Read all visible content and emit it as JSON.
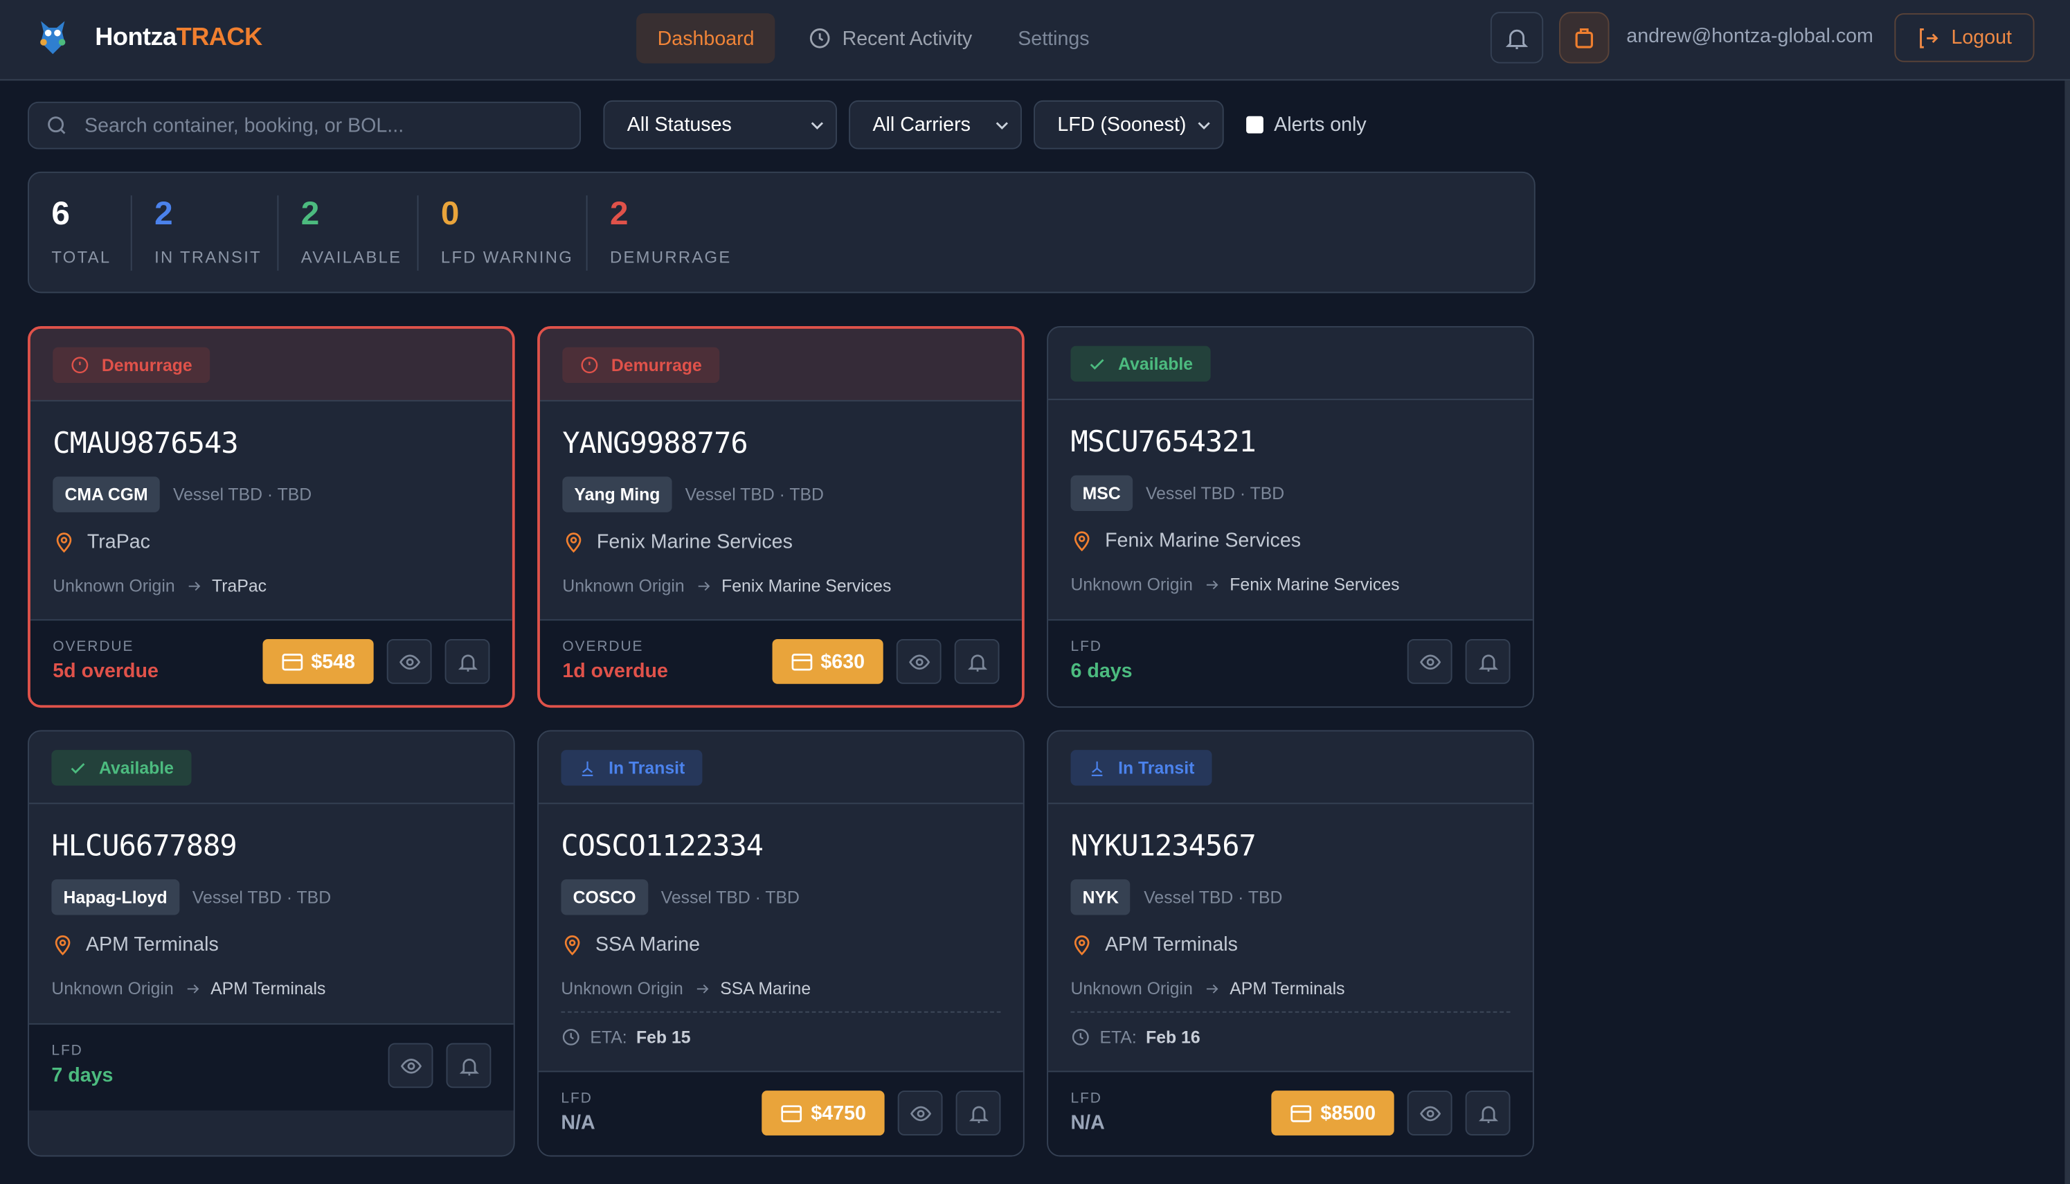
{
  "app": {
    "brand_main": "Hontza",
    "brand_accent": "TRACK"
  },
  "nav": {
    "dashboard": "Dashboard",
    "recent_activity": "Recent Activity",
    "settings": "Settings",
    "active": "Dashboard"
  },
  "user": {
    "email": "andrew@hontza-global.com",
    "logout": "Logout"
  },
  "filters": {
    "search_placeholder": "Search container, booking, or BOL...",
    "search_value": "",
    "status": "All Statuses",
    "carrier": "All Carriers",
    "sort": "LFD (Soonest)",
    "alerts_only_label": "Alerts only",
    "alerts_only": false
  },
  "stats": [
    {
      "value": "6",
      "label": "TOTAL",
      "color": "#ffffff"
    },
    {
      "value": "2",
      "label": "IN TRANSIT",
      "color": "#4b82ec"
    },
    {
      "value": "2",
      "label": "AVAILABLE",
      "color": "#4cbb7f"
    },
    {
      "value": "0",
      "label": "LFD WARNING",
      "color": "#e9a43b"
    },
    {
      "value": "2",
      "label": "DEMURRAGE",
      "color": "#e0524a"
    }
  ],
  "colors": {
    "accent": "#f07f2f",
    "demurrage": "#e0524a",
    "available": "#4cbb7f",
    "transit": "#4b82ec",
    "fee": "#e9a43b"
  },
  "containers": [
    {
      "status": "demurrage",
      "status_label": "Demurrage",
      "id": "CMAU9876543",
      "carrier": "CMA CGM",
      "vessel": "Vessel TBD · TBD",
      "terminal": "TraPac",
      "origin": "Unknown Origin",
      "destination": "TraPac",
      "footer_label": "OVERDUE",
      "footer_value": "5d overdue",
      "footer_color": "#e0524a",
      "fee": "$548"
    },
    {
      "status": "demurrage",
      "status_label": "Demurrage",
      "id": "YANG9988776",
      "carrier": "Yang Ming",
      "vessel": "Vessel TBD · TBD",
      "terminal": "Fenix Marine Services",
      "origin": "Unknown Origin",
      "destination": "Fenix Marine Services",
      "footer_label": "OVERDUE",
      "footer_value": "1d overdue",
      "footer_color": "#e0524a",
      "fee": "$630"
    },
    {
      "status": "available",
      "status_label": "Available",
      "id": "MSCU7654321",
      "carrier": "MSC",
      "vessel": "Vessel TBD · TBD",
      "terminal": "Fenix Marine Services",
      "origin": "Unknown Origin",
      "destination": "Fenix Marine Services",
      "footer_label": "LFD",
      "footer_value": "6 days",
      "footer_color": "#4cbb7f"
    },
    {
      "status": "available",
      "status_label": "Available",
      "id": "HLCU6677889",
      "carrier": "Hapag-Lloyd",
      "vessel": "Vessel TBD · TBD",
      "terminal": "APM Terminals",
      "origin": "Unknown Origin",
      "destination": "APM Terminals",
      "footer_label": "LFD",
      "footer_value": "7 days",
      "footer_color": "#4cbb7f"
    },
    {
      "status": "transit",
      "status_label": "In Transit",
      "id": "COSCO1122334",
      "carrier": "COSCO",
      "vessel": "Vessel TBD · TBD",
      "terminal": "SSA Marine",
      "origin": "Unknown Origin",
      "destination": "SSA Marine",
      "eta_label": "ETA:",
      "eta": "Feb 15",
      "footer_label": "LFD",
      "footer_value": "N/A",
      "footer_color": "#9aa5b8",
      "fee": "$4750"
    },
    {
      "status": "transit",
      "status_label": "In Transit",
      "id": "NYKU1234567",
      "carrier": "NYK",
      "vessel": "Vessel TBD · TBD",
      "terminal": "APM Terminals",
      "origin": "Unknown Origin",
      "destination": "APM Terminals",
      "eta_label": "ETA:",
      "eta": "Feb 16",
      "footer_label": "LFD",
      "footer_value": "N/A",
      "footer_color": "#9aa5b8",
      "fee": "$8500"
    }
  ]
}
